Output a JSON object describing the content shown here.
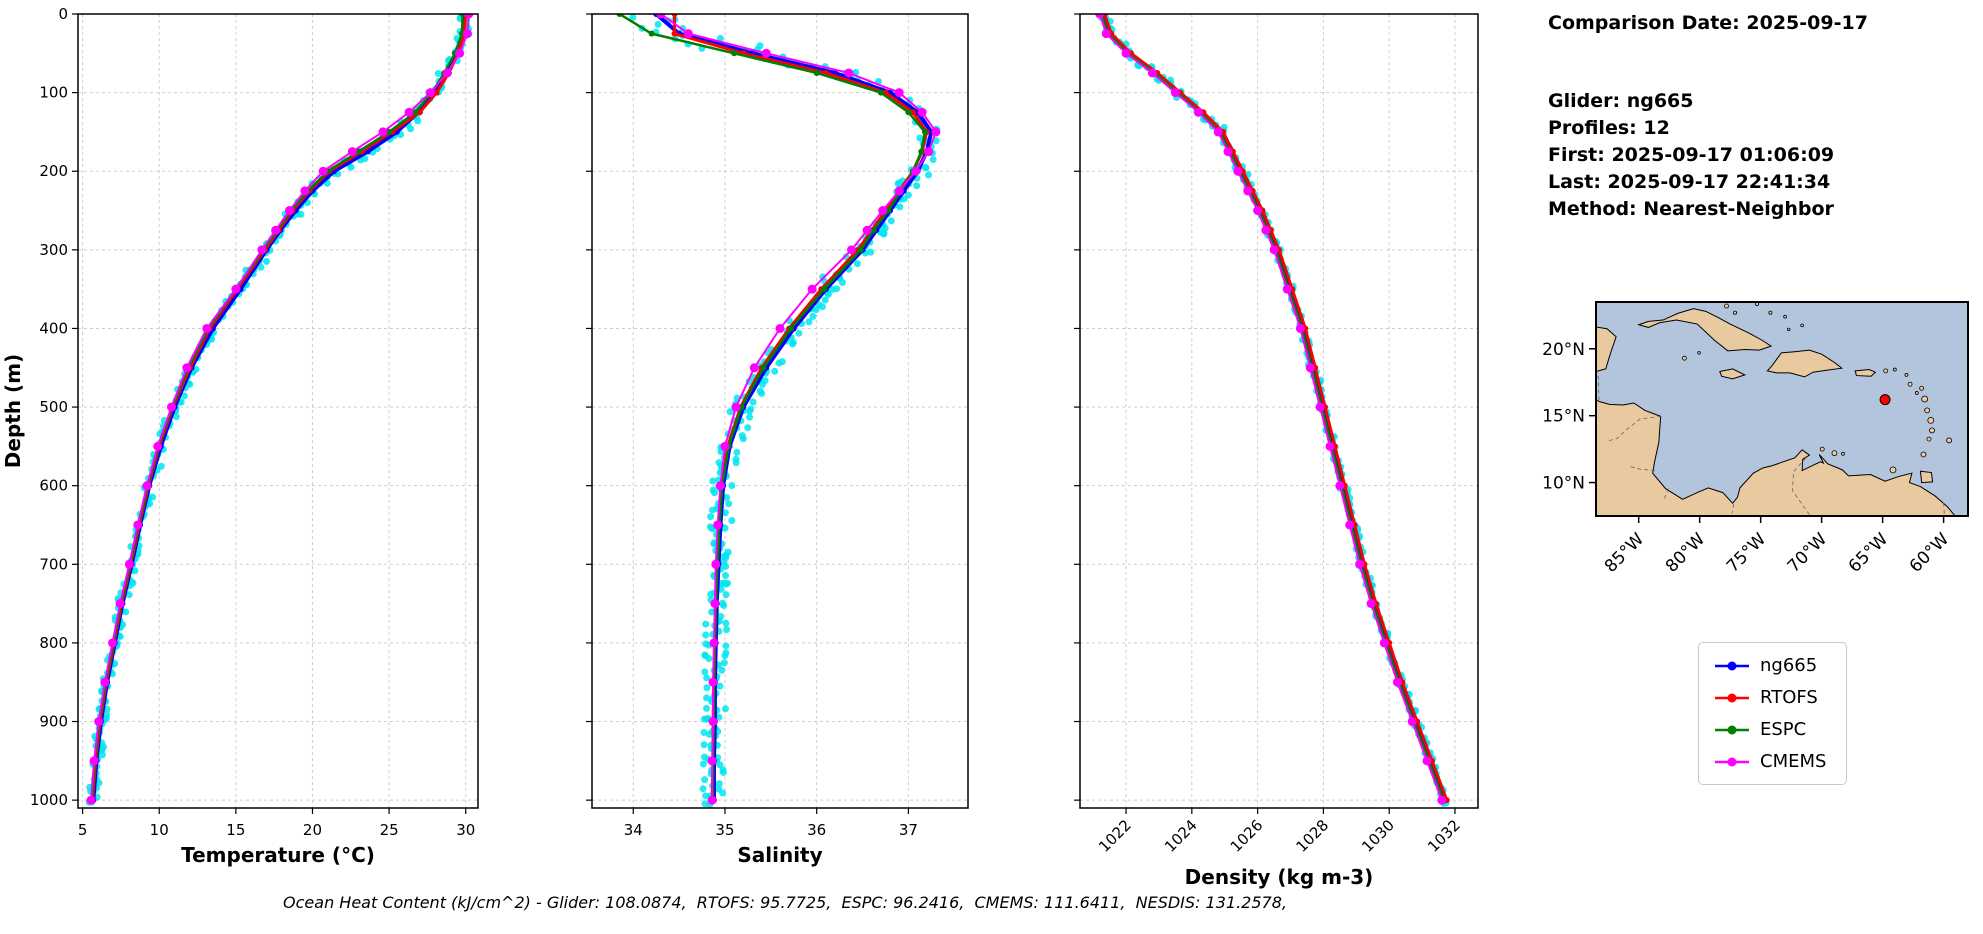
{
  "info_panel": {
    "comparison_date": "Comparison Date: 2025-09-17",
    "glider": "Glider: ng665",
    "profiles": "Profiles: 12",
    "first": "First: 2025-09-17 01:06:09",
    "last": "Last: 2025-09-17 22:41:34",
    "method": "Method: Nearest-Neighbor"
  },
  "legend": {
    "items": [
      {
        "label": "ng665",
        "color": "#0000ff"
      },
      {
        "label": "RTOFS",
        "color": "#ff0000"
      },
      {
        "label": "ESPC",
        "color": "#008000"
      },
      {
        "label": "CMEMS",
        "color": "#ff00ff"
      }
    ]
  },
  "footer": {
    "ohc_text": "Ocean Heat Content (kJ/cm^2) - Glider: 108.0874,  RTOFS: 95.7725,  ESPC: 96.2416,  CMEMS: 111.6411,  NESDIS: 131.2578,"
  },
  "map": {
    "extent": {
      "lon_min": -88.5,
      "lon_max": -58.0,
      "lat_min": 7.5,
      "lat_max": 23.5
    },
    "lat_ticks": [
      {
        "label": "20°N",
        "lat": 20
      },
      {
        "label": "15°N",
        "lat": 15
      },
      {
        "label": "10°N",
        "lat": 10
      }
    ],
    "lon_ticks": [
      {
        "label": "85°W",
        "lon": -85
      },
      {
        "label": "80°W",
        "lon": -80
      },
      {
        "label": "75°W",
        "lon": -75
      },
      {
        "label": "70°W",
        "lon": -70
      },
      {
        "label": "65°W",
        "lon": -65
      },
      {
        "label": "60°W",
        "lon": -60
      }
    ],
    "marker": {
      "lat": 16.2,
      "lon": -64.8,
      "color": "#ff0000"
    },
    "ocean_color": "#b3c5dd",
    "land_color": "#e9c9a0"
  },
  "chart_data": [
    {
      "id": "temperature",
      "type": "line",
      "xlabel": "Temperature (°C)",
      "ylabel": "Depth (m)",
      "xlim": [
        4.7,
        30.8
      ],
      "ylim": [
        0,
        1010
      ],
      "xticks": [
        5,
        10,
        15,
        20,
        25,
        30
      ],
      "yticks": [
        0,
        100,
        200,
        300,
        400,
        500,
        600,
        700,
        800,
        900,
        1000
      ],
      "show_depth_labels": true,
      "xtick_rotation": 0,
      "grid": true,
      "scatter": {
        "name": "glider-raw-points",
        "color": "#00e5f0",
        "jitter": 0.35,
        "surface_boost": 1
      },
      "depths": [
        0,
        25,
        50,
        75,
        100,
        125,
        150,
        175,
        200,
        225,
        250,
        275,
        300,
        350,
        400,
        450,
        500,
        550,
        600,
        650,
        700,
        750,
        800,
        850,
        900,
        950,
        1000
      ],
      "series": [
        {
          "name": "ng665",
          "color": "#0000ff",
          "line_width": 4,
          "marker_size": 3,
          "values": [
            29.9,
            29.85,
            29.4,
            28.7,
            27.9,
            26.9,
            25.5,
            23.6,
            21.4,
            20.0,
            18.9,
            17.9,
            17.0,
            15.3,
            13.5,
            12.1,
            11.0,
            10.1,
            9.35,
            8.75,
            8.2,
            7.6,
            7.1,
            6.6,
            6.2,
            5.9,
            5.7
          ]
        },
        {
          "name": "RTOFS",
          "color": "#ff0000",
          "line_width": 3,
          "marker_size": 3,
          "values": [
            30.0,
            29.9,
            29.5,
            28.9,
            28.1,
            27.0,
            25.2,
            23.2,
            21.1,
            19.8,
            18.7,
            17.8,
            16.9,
            15.1,
            13.3,
            12.0,
            10.9,
            10.0,
            9.3,
            8.7,
            8.15,
            7.55,
            7.05,
            6.55,
            6.15,
            5.85,
            5.65
          ]
        },
        {
          "name": "ESPC",
          "color": "#008000",
          "line_width": 2.5,
          "marker_size": 3,
          "values": [
            29.8,
            29.75,
            29.3,
            28.6,
            27.8,
            26.7,
            25.0,
            23.0,
            21.0,
            19.7,
            18.6,
            17.7,
            16.8,
            15.0,
            13.2,
            11.9,
            10.85,
            9.95,
            9.25,
            8.65,
            8.1,
            7.5,
            7.0,
            6.5,
            6.1,
            5.8,
            5.6
          ]
        },
        {
          "name": "CMEMS",
          "color": "#ff00ff",
          "line_width": 2,
          "marker_size": 4.5,
          "values": [
            30.2,
            30.1,
            29.6,
            28.8,
            27.7,
            26.3,
            24.6,
            22.6,
            20.7,
            19.5,
            18.5,
            17.6,
            16.7,
            15.0,
            13.1,
            11.8,
            10.8,
            9.9,
            9.2,
            8.6,
            8.05,
            7.45,
            6.95,
            6.45,
            6.05,
            5.75,
            5.55
          ]
        }
      ]
    },
    {
      "id": "salinity",
      "type": "line",
      "xlabel": "Salinity",
      "ylabel": "",
      "xlim": [
        33.55,
        37.65
      ],
      "ylim": [
        0,
        1010
      ],
      "xticks": [
        34,
        35,
        36,
        37
      ],
      "yticks": [
        0,
        100,
        200,
        300,
        400,
        500,
        600,
        700,
        800,
        900,
        1000
      ],
      "show_depth_labels": false,
      "xtick_rotation": 0,
      "grid": true,
      "scatter": {
        "name": "glider-raw-points",
        "color": "#00e5f0",
        "jitter": 0.12,
        "surface_boost": 3.5
      },
      "depths": [
        0,
        25,
        50,
        75,
        100,
        125,
        150,
        175,
        200,
        225,
        250,
        275,
        300,
        350,
        400,
        450,
        500,
        550,
        600,
        650,
        700,
        750,
        800,
        850,
        900,
        950,
        1000
      ],
      "series": [
        {
          "name": "ng665",
          "color": "#0000ff",
          "line_width": 4,
          "marker_size": 3,
          "values": [
            34.25,
            34.5,
            35.3,
            36.2,
            36.8,
            37.1,
            37.25,
            37.2,
            37.1,
            36.95,
            36.8,
            36.65,
            36.5,
            36.1,
            35.75,
            35.45,
            35.2,
            35.05,
            34.98,
            34.95,
            34.93,
            34.91,
            34.9,
            34.89,
            34.89,
            34.88,
            34.88
          ]
        },
        {
          "name": "RTOFS",
          "color": "#ff0000",
          "line_width": 3,
          "marker_size": 3,
          "values": [
            34.45,
            34.45,
            35.2,
            36.1,
            36.75,
            37.05,
            37.2,
            37.15,
            37.05,
            36.9,
            36.75,
            36.6,
            36.45,
            36.05,
            35.7,
            35.4,
            35.17,
            35.03,
            34.96,
            34.93,
            34.91,
            34.9,
            34.89,
            34.88,
            34.87,
            34.87,
            34.86
          ]
        },
        {
          "name": "ESPC",
          "color": "#008000",
          "line_width": 2.5,
          "marker_size": 3,
          "values": [
            33.85,
            34.2,
            35.1,
            36.0,
            36.7,
            37.0,
            37.18,
            37.14,
            37.05,
            36.92,
            36.78,
            36.62,
            36.48,
            36.08,
            35.72,
            35.42,
            35.18,
            35.04,
            34.97,
            34.94,
            34.92,
            34.9,
            34.89,
            34.88,
            34.88,
            34.87,
            34.87
          ]
        },
        {
          "name": "CMEMS",
          "color": "#ff00ff",
          "line_width": 2,
          "marker_size": 4.5,
          "values": [
            34.3,
            34.6,
            35.45,
            36.35,
            36.9,
            37.15,
            37.3,
            37.22,
            37.08,
            36.9,
            36.72,
            36.55,
            36.38,
            35.95,
            35.6,
            35.32,
            35.12,
            35.0,
            34.95,
            34.92,
            34.9,
            34.89,
            34.88,
            34.87,
            34.87,
            34.86,
            34.86
          ]
        }
      ]
    },
    {
      "id": "density",
      "type": "line",
      "xlabel": "Density (kg m-3)",
      "ylabel": "",
      "xlim": [
        1020.6,
        1032.7
      ],
      "ylim": [
        0,
        1010
      ],
      "xticks": [
        1022,
        1024,
        1026,
        1028,
        1030,
        1032
      ],
      "yticks": [
        0,
        100,
        200,
        300,
        400,
        500,
        600,
        700,
        800,
        900,
        1000
      ],
      "show_depth_labels": false,
      "xtick_rotation": 45,
      "grid": true,
      "scatter": {
        "name": "glider-raw-points",
        "color": "#00e5f0",
        "jitter": 0.1,
        "surface_boost": 1.5
      },
      "depths": [
        0,
        25,
        50,
        75,
        100,
        125,
        150,
        175,
        200,
        225,
        250,
        275,
        300,
        350,
        400,
        450,
        500,
        550,
        600,
        650,
        700,
        750,
        800,
        850,
        900,
        950,
        1000
      ],
      "series": [
        {
          "name": "ng665",
          "color": "#0000ff",
          "line_width": 4,
          "marker_size": 3,
          "values": [
            1021.3,
            1021.5,
            1022.1,
            1022.9,
            1023.6,
            1024.3,
            1024.9,
            1025.2,
            1025.5,
            1025.8,
            1026.1,
            1026.35,
            1026.6,
            1027.0,
            1027.4,
            1027.7,
            1028.0,
            1028.3,
            1028.6,
            1028.9,
            1029.2,
            1029.55,
            1029.95,
            1030.35,
            1030.8,
            1031.25,
            1031.7
          ]
        },
        {
          "name": "RTOFS",
          "color": "#ff0000",
          "line_width": 3,
          "marker_size": 3,
          "values": [
            1021.35,
            1021.55,
            1022.15,
            1022.95,
            1023.65,
            1024.35,
            1024.95,
            1025.25,
            1025.55,
            1025.85,
            1026.15,
            1026.4,
            1026.65,
            1027.05,
            1027.45,
            1027.75,
            1028.05,
            1028.35,
            1028.65,
            1028.95,
            1029.25,
            1029.6,
            1030.0,
            1030.4,
            1030.85,
            1031.3,
            1031.75
          ]
        },
        {
          "name": "ESPC",
          "color": "#008000",
          "line_width": 2.5,
          "marker_size": 3,
          "values": [
            1021.25,
            1021.45,
            1022.05,
            1022.85,
            1023.55,
            1024.25,
            1024.85,
            1025.15,
            1025.45,
            1025.75,
            1026.05,
            1026.3,
            1026.55,
            1026.95,
            1027.35,
            1027.65,
            1027.95,
            1028.25,
            1028.55,
            1028.85,
            1029.15,
            1029.5,
            1029.9,
            1030.3,
            1030.75,
            1031.2,
            1031.65
          ]
        },
        {
          "name": "CMEMS",
          "color": "#ff00ff",
          "line_width": 2,
          "marker_size": 4.5,
          "values": [
            1021.2,
            1021.4,
            1022.0,
            1022.8,
            1023.5,
            1024.2,
            1024.8,
            1025.1,
            1025.4,
            1025.7,
            1026.0,
            1026.25,
            1026.5,
            1026.9,
            1027.3,
            1027.6,
            1027.9,
            1028.2,
            1028.5,
            1028.8,
            1029.1,
            1029.45,
            1029.85,
            1030.25,
            1030.7,
            1031.15,
            1031.6
          ]
        }
      ]
    }
  ]
}
